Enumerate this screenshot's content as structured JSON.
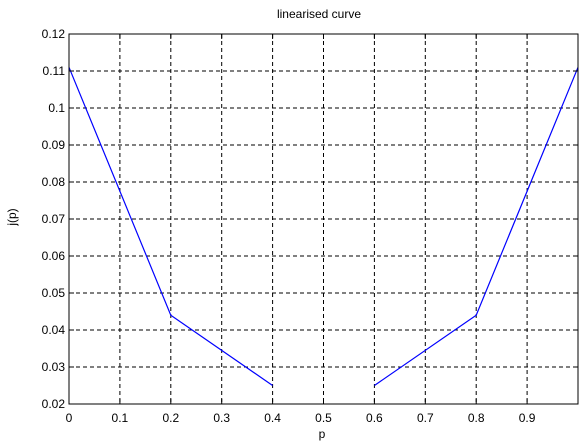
{
  "chart_data": {
    "type": "line",
    "title": "linearised curve",
    "xlabel": "p",
    "ylabel": "j(p)",
    "xlim": [
      0,
      1
    ],
    "ylim": [
      0.02,
      0.12
    ],
    "xticks": [
      0,
      0.1,
      0.2,
      0.3,
      0.4,
      0.5,
      0.6,
      0.7,
      0.8,
      0.9
    ],
    "xtick_labels": [
      "0",
      "0.1",
      "0.2",
      "0.3",
      "0.4",
      "0.5",
      "0.6",
      "0.7",
      "0.8",
      "0.9"
    ],
    "yticks": [
      0.02,
      0.03,
      0.04,
      0.05,
      0.06,
      0.07,
      0.08,
      0.09,
      0.1,
      0.11,
      0.12
    ],
    "ytick_labels": [
      "0.02",
      "0.03",
      "0.04",
      "0.05",
      "0.06",
      "0.07",
      "0.08",
      "0.09",
      "0.1",
      "0.11",
      "0.12"
    ],
    "grid": true,
    "series": [
      {
        "color": "#0000ff",
        "segments": [
          {
            "x": [
              0,
              0.2,
              0.4
            ],
            "y": [
              0.111,
              0.044,
              0.025
            ]
          },
          {
            "x": [
              0.6,
              0.8,
              1.0
            ],
            "y": [
              0.025,
              0.044,
              0.111
            ]
          }
        ]
      }
    ]
  }
}
